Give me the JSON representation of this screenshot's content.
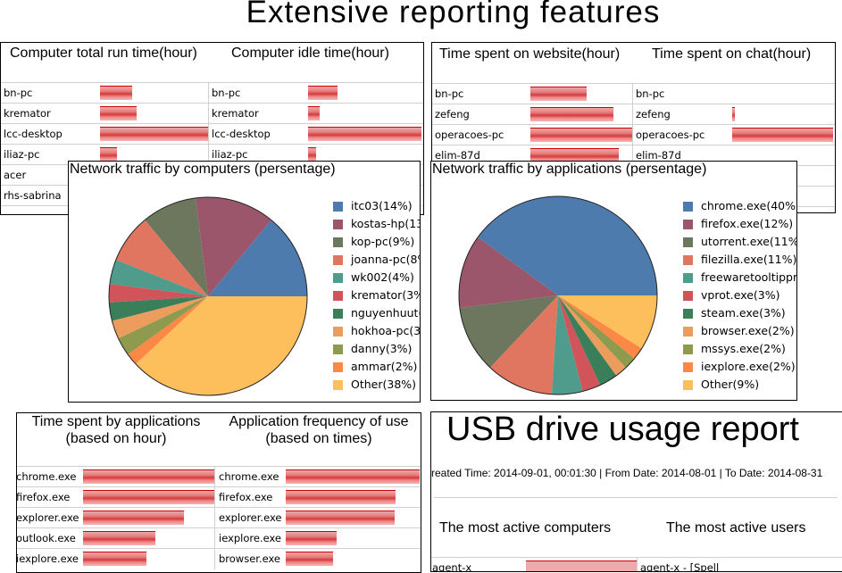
{
  "header": {
    "title": "Extensive reporting features"
  },
  "computer_panel": {
    "run_title": "Computer total run time(hour)",
    "idle_title": "Computer idle time(hour)",
    "rows": [
      {
        "name": "bn-pc",
        "run_fill": 30,
        "idle_fill": 26,
        "idle_name": "bn-pc"
      },
      {
        "name": "kremator",
        "run_fill": 34,
        "idle_fill": 10,
        "idle_name": "kremator"
      },
      {
        "name": "lcc-desktop",
        "run_fill": 100,
        "idle_fill": 100,
        "idle_name": "lcc-desktop"
      },
      {
        "name": "iliaz-pc",
        "run_fill": 16,
        "idle_fill": 7,
        "idle_name": "iliaz-pc"
      },
      {
        "name": "acer"
      },
      {
        "name": "rhs-sabrina"
      }
    ]
  },
  "web_panel": {
    "web_title": "Time spent on website(hour)",
    "chat_title": "Time spent on chat(hour)",
    "rows": [
      {
        "name": "bn-pc",
        "web_fill": 55,
        "chat_fill": 0
      },
      {
        "name": "zefeng",
        "web_fill": 82,
        "chat_fill": 3
      },
      {
        "name": "operacoes-pc",
        "web_fill": 100,
        "chat_fill": 100
      },
      {
        "name": "elim-87d",
        "web_fill": 87,
        "chat_fill": 0
      }
    ]
  },
  "apps_panel": {
    "time_title_1": "Time spent by applications",
    "time_title_2": "(based on hour)",
    "freq_title_1": "Application frequency of use",
    "freq_title_2": "(based on times)",
    "time_rows": [
      {
        "name": "chrome.exe",
        "fill": 100
      },
      {
        "name": "firefox.exe",
        "fill": 100
      },
      {
        "name": "explorer.exe",
        "fill": 77
      },
      {
        "name": "outlook.exe",
        "fill": 55
      },
      {
        "name": "iexplore.exe",
        "fill": 48
      }
    ],
    "freq_rows": [
      {
        "name": "chrome.exe",
        "fill": 100
      },
      {
        "name": "firefox.exe",
        "fill": 82
      },
      {
        "name": "explorer.exe",
        "fill": 81
      },
      {
        "name": "iexplore.exe",
        "fill": 38
      },
      {
        "name": "browser.exe",
        "fill": 35
      }
    ]
  },
  "usb_panel": {
    "title": "USB drive usage report",
    "info": "reated Time: 2014-09-01, 00:01:30 | From Date: 2014-08-01 | To Date: 2014-08-31",
    "computers_title": "The most active computers",
    "users_title": "The most active users",
    "row_computer": "agent-x",
    "row_user": "agent-x - [Spell"
  },
  "chart_data": [
    {
      "type": "pie",
      "title": "Network traffic by computers (persentage)",
      "legend": "right",
      "start": "east, counterclockwise",
      "slices": [
        {
          "name": "itc03",
          "value": 14,
          "color": "#4e7bae"
        },
        {
          "name": "kostas-hp",
          "value": 13,
          "color": "#9c566c"
        },
        {
          "name": "kop-pc",
          "value": 9,
          "color": "#6c775e"
        },
        {
          "name": "joanna-pc",
          "value": 8,
          "color": "#e0765f"
        },
        {
          "name": "wk002",
          "value": 4,
          "color": "#4f9c8c"
        },
        {
          "name": "kremator",
          "value": 3,
          "color": "#d0545a"
        },
        {
          "name": "nguyenhuut",
          "value": 3,
          "color": "#3b7f5a"
        },
        {
          "name": "hokhoa-pc",
          "value": 3,
          "color": "#ec9c5c"
        },
        {
          "name": "danny",
          "value": 3,
          "color": "#8e9a4e"
        },
        {
          "name": "ammar",
          "value": 2,
          "color": "#fb8844"
        },
        {
          "name": "Other",
          "value": 38,
          "color": "#fdbe5c"
        }
      ]
    },
    {
      "type": "pie",
      "title": "Network traffic by applications (persentage)",
      "legend": "right",
      "start": "east, counterclockwise",
      "slices": [
        {
          "name": "chrome.exe",
          "value": 40,
          "color": "#4e7bae"
        },
        {
          "name": "firefox.exe",
          "value": 12,
          "color": "#9c566c"
        },
        {
          "name": "utorrent.exe",
          "value": 11,
          "color": "#6c775e"
        },
        {
          "name": "filezilla.exe",
          "value": 11,
          "color": "#e0765f"
        },
        {
          "name": "freewaretooltippr",
          "value": 5,
          "color": "#4f9c8c"
        },
        {
          "name": "vprot.exe",
          "value": 3,
          "color": "#d0545a"
        },
        {
          "name": "steam.exe",
          "value": 3,
          "color": "#3b7f5a"
        },
        {
          "name": "browser.exe",
          "value": 2,
          "color": "#ec9c5c"
        },
        {
          "name": "mssys.exe",
          "value": 2,
          "color": "#8e9a4e"
        },
        {
          "name": "iexplore.exe",
          "value": 2,
          "color": "#fb8844"
        },
        {
          "name": "Other",
          "value": 9,
          "color": "#fdbe5c"
        }
      ]
    }
  ]
}
